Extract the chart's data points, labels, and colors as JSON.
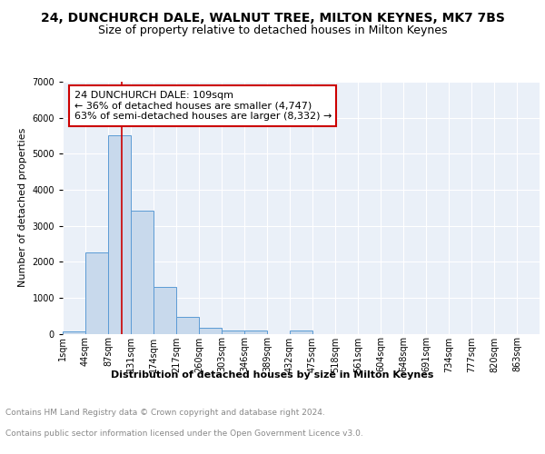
{
  "title": "24, DUNCHURCH DALE, WALNUT TREE, MILTON KEYNES, MK7 7BS",
  "subtitle": "Size of property relative to detached houses in Milton Keynes",
  "xlabel": "Distribution of detached houses by size in Milton Keynes",
  "ylabel": "Number of detached properties",
  "bar_color": "#c8d9ec",
  "bar_edge_color": "#5b9bd5",
  "background_color": "#eaf0f8",
  "grid_color": "#ffffff",
  "bin_labels": [
    "1sqm",
    "44sqm",
    "87sqm",
    "131sqm",
    "174sqm",
    "217sqm",
    "260sqm",
    "303sqm",
    "346sqm",
    "389sqm",
    "432sqm",
    "475sqm",
    "518sqm",
    "561sqm",
    "604sqm",
    "648sqm",
    "691sqm",
    "734sqm",
    "777sqm",
    "820sqm",
    "863sqm"
  ],
  "bar_heights": [
    75,
    2270,
    5500,
    3430,
    1290,
    460,
    165,
    80,
    80,
    0,
    80,
    0,
    0,
    0,
    0,
    0,
    0,
    0,
    0,
    0,
    0
  ],
  "ylim": [
    0,
    7000
  ],
  "yticks": [
    0,
    1000,
    2000,
    3000,
    4000,
    5000,
    6000,
    7000
  ],
  "red_line_x": 2.6,
  "annotation_text": "24 DUNCHURCH DALE: 109sqm\n← 36% of detached houses are smaller (4,747)\n63% of semi-detached houses are larger (8,332) →",
  "annotation_box_color": "#ffffff",
  "annotation_box_edge": "#cc0000",
  "footer_line1": "Contains HM Land Registry data © Crown copyright and database right 2024.",
  "footer_line2": "Contains public sector information licensed under the Open Government Licence v3.0.",
  "title_fontsize": 10,
  "subtitle_fontsize": 9,
  "annotation_fontsize": 8,
  "footer_fontsize": 6.5,
  "xlabel_fontsize": 8,
  "ylabel_fontsize": 8,
  "tick_fontsize": 7
}
